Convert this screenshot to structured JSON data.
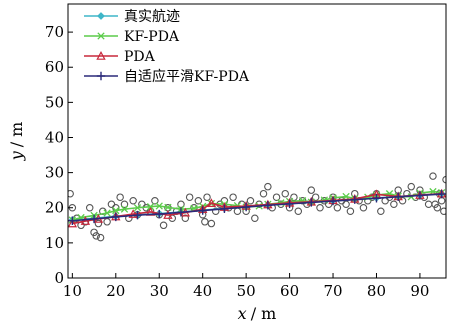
{
  "chart_data": {
    "type": "scatter",
    "xlabel_var": "x",
    "xlabel_unit": "/ m",
    "ylabel_var": "y",
    "ylabel_unit": "/ m",
    "xlim": [
      9,
      96
    ],
    "ylim": [
      0,
      78
    ],
    "xticks": [
      10,
      20,
      30,
      40,
      50,
      60,
      70,
      80,
      90
    ],
    "yticks": [
      0,
      10,
      20,
      30,
      40,
      50,
      60,
      70
    ],
    "grid": false,
    "legend_position": "top-left",
    "series": [
      {
        "name": "真实航迹",
        "color": "#3fb6c8",
        "marker": "diamond",
        "x": [
          10,
          15,
          20,
          25,
          30,
          35,
          40,
          45,
          50,
          55,
          60,
          65,
          70,
          75,
          80,
          85,
          90,
          95
        ],
        "y": [
          16.5,
          17,
          17.6,
          18,
          18.3,
          18.8,
          19.3,
          19.8,
          20.3,
          20.8,
          21.2,
          21.6,
          22,
          22.4,
          22.8,
          23.2,
          23.6,
          24
        ]
      },
      {
        "name": "KF-PDA",
        "color": "#5bcc4a",
        "marker": "x",
        "x": [
          10,
          12,
          15,
          18,
          20,
          22,
          25,
          28,
          30,
          32,
          35,
          38,
          40,
          42,
          45,
          48,
          50,
          53,
          55,
          58,
          60,
          63,
          65,
          68,
          70,
          73,
          75,
          78,
          80,
          83,
          85,
          88,
          90,
          93,
          95
        ],
        "y": [
          16.5,
          17.2,
          17.8,
          18.5,
          19.2,
          19.6,
          20,
          20.3,
          20.5,
          20.1,
          19.6,
          19.8,
          20.4,
          21.2,
          21,
          20.6,
          20.2,
          20.5,
          21,
          21.4,
          21.8,
          22,
          21.6,
          22.2,
          22.8,
          23.2,
          22.6,
          23,
          23.6,
          24,
          23.3,
          23.1,
          24.2,
          24.6,
          24.3
        ]
      },
      {
        "name": "PDA",
        "color": "#c8283c",
        "marker": "triangle",
        "x": [
          10,
          13,
          16,
          20,
          24,
          28,
          32,
          36,
          40,
          42,
          45,
          50,
          55,
          60,
          65,
          70,
          75,
          80,
          85,
          90,
          95
        ],
        "y": [
          15.5,
          16.2,
          16.8,
          17.5,
          18.2,
          18.8,
          17.9,
          18.6,
          19.6,
          21.3,
          20.2,
          20.5,
          20.9,
          21.4,
          21.7,
          22.1,
          22.5,
          23.8,
          23.2,
          23.6,
          24
        ]
      },
      {
        "name": "自适应平滑KF-PDA",
        "color": "#2b2a7a",
        "marker": "plus",
        "x": [
          10,
          15,
          20,
          25,
          30,
          35,
          40,
          45,
          50,
          55,
          60,
          65,
          70,
          75,
          80,
          85,
          90,
          95
        ],
        "y": [
          16.3,
          16.8,
          17.4,
          17.9,
          18.2,
          18.7,
          19.2,
          19.7,
          20.2,
          20.7,
          21.1,
          21.5,
          21.9,
          22.3,
          22.7,
          23.1,
          23.5,
          23.9
        ]
      }
    ],
    "clutter": {
      "color": "#555555",
      "marker": "circle",
      "points": [
        [
          9.5,
          24
        ],
        [
          10,
          20
        ],
        [
          11,
          17
        ],
        [
          12,
          15
        ],
        [
          13,
          16
        ],
        [
          14,
          20
        ],
        [
          15,
          13
        ],
        [
          15.5,
          12
        ],
        [
          16,
          15.5
        ],
        [
          16.5,
          11.5
        ],
        [
          17,
          19
        ],
        [
          18,
          16
        ],
        [
          19,
          21
        ],
        [
          20,
          20
        ],
        [
          21,
          23
        ],
        [
          22,
          21
        ],
        [
          23,
          17
        ],
        [
          24,
          22
        ],
        [
          25,
          18
        ],
        [
          26,
          21
        ],
        [
          27,
          20
        ],
        [
          28,
          19
        ],
        [
          29,
          22
        ],
        [
          30,
          18
        ],
        [
          31,
          15
        ],
        [
          32,
          20
        ],
        [
          33,
          17
        ],
        [
          34,
          19
        ],
        [
          35,
          21
        ],
        [
          36,
          17
        ],
        [
          37,
          23
        ],
        [
          38,
          20
        ],
        [
          39,
          22
        ],
        [
          40,
          18
        ],
        [
          40.5,
          16
        ],
        [
          41,
          23
        ],
        [
          42,
          15.5
        ],
        [
          43,
          19
        ],
        [
          44,
          21
        ],
        [
          45,
          22
        ],
        [
          46,
          20
        ],
        [
          47,
          23
        ],
        [
          48,
          19
        ],
        [
          49,
          21
        ],
        [
          50,
          19
        ],
        [
          51,
          22
        ],
        [
          52,
          17
        ],
        [
          53,
          21
        ],
        [
          54,
          24
        ],
        [
          55,
          26
        ],
        [
          56,
          20
        ],
        [
          57,
          23
        ],
        [
          58,
          21
        ],
        [
          59,
          24
        ],
        [
          60,
          20
        ],
        [
          61,
          23
        ],
        [
          62,
          19
        ],
        [
          63,
          22
        ],
        [
          64,
          21
        ],
        [
          65,
          25
        ],
        [
          66,
          23
        ],
        [
          67,
          20
        ],
        [
          68,
          22
        ],
        [
          69,
          21
        ],
        [
          70,
          23
        ],
        [
          71,
          20
        ],
        [
          72,
          22
        ],
        [
          73,
          21
        ],
        [
          74,
          19
        ],
        [
          75,
          24
        ],
        [
          76,
          22
        ],
        [
          77,
          20
        ],
        [
          78,
          22
        ],
        [
          79,
          23
        ],
        [
          80,
          24
        ],
        [
          81,
          19
        ],
        [
          82,
          22
        ],
        [
          83,
          23
        ],
        [
          84,
          21
        ],
        [
          85,
          25
        ],
        [
          86,
          22
        ],
        [
          87,
          24
        ],
        [
          88,
          26
        ],
        [
          89,
          23
        ],
        [
          90,
          25
        ],
        [
          91,
          23
        ],
        [
          92,
          21
        ],
        [
          93,
          29
        ],
        [
          93.5,
          21
        ],
        [
          94,
          20
        ],
        [
          94.5,
          24
        ],
        [
          95,
          22
        ],
        [
          95.5,
          19
        ],
        [
          96,
          28
        ]
      ]
    }
  }
}
